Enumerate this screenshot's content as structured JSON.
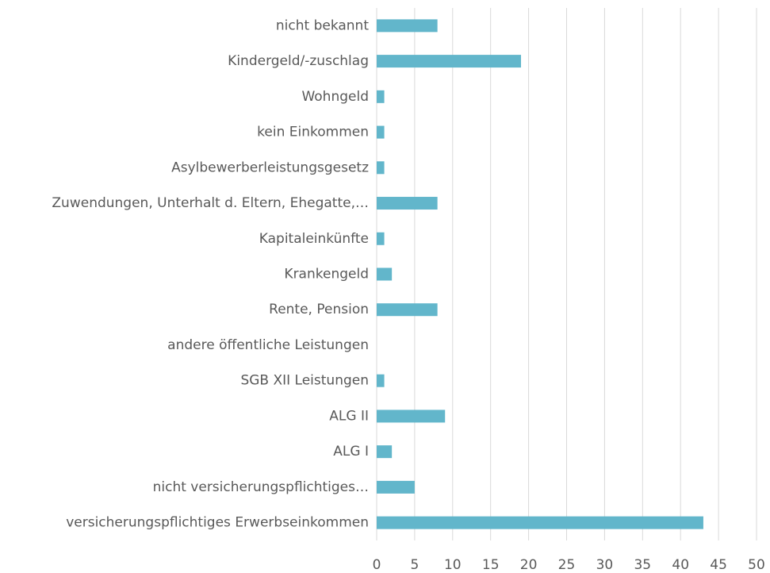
{
  "chart_data": {
    "type": "bar",
    "orientation": "horizontal",
    "categories": [
      "nicht bekannt",
      "Kindergeld/-zuschlag",
      "Wohngeld",
      "kein Einkommen",
      "Asylbewerberleistungsgesetz",
      "Zuwendungen, Unterhalt d. Eltern, Ehegatte,…",
      "Kapitaleinkünfte",
      "Krankengeld",
      "Rente, Pension",
      "andere öffentliche Leistungen",
      "SGB XII Leistungen",
      "ALG II",
      "ALG I",
      "nicht versicherungspflichtiges…",
      "versicherungspflichtiges Erwerbseinkommen"
    ],
    "values": [
      8,
      19,
      1,
      1,
      1,
      8,
      1,
      2,
      8,
      0,
      1,
      9,
      2,
      5,
      43
    ],
    "color": "#62b6cb",
    "xlim": [
      0,
      50
    ],
    "xticks": [
      0,
      5,
      10,
      15,
      20,
      25,
      30,
      35,
      40,
      45,
      50
    ],
    "grid": true
  }
}
